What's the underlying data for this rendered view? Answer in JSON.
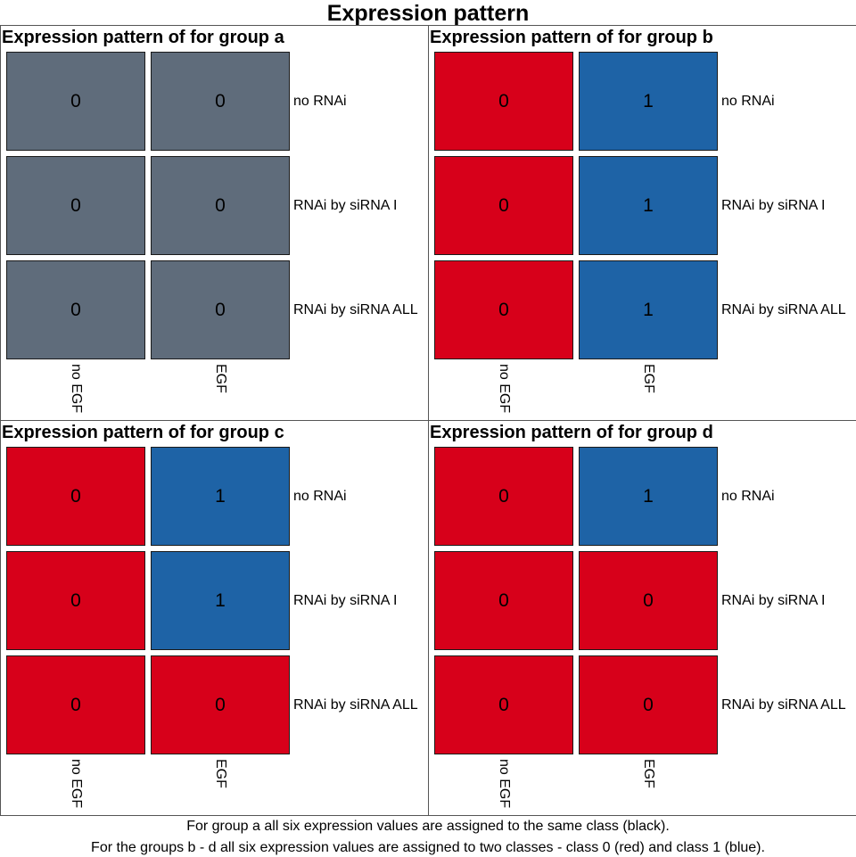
{
  "title": "Expression pattern",
  "chart_data": {
    "type": "heatmap",
    "title": "Expression pattern",
    "rows": [
      "no RNAi",
      "RNAi by siRNA I",
      "RNAi by siRNA ALL"
    ],
    "columns": [
      "no EGF",
      "EGF"
    ],
    "panels": [
      {
        "title": "Expression pattern of for group a",
        "values": [
          [
            0,
            0
          ],
          [
            0,
            0
          ],
          [
            0,
            0
          ]
        ],
        "class_colors": {
          "0": "#5f6c7b",
          "1": "#5f6c7b"
        }
      },
      {
        "title": "Expression pattern of for group b",
        "values": [
          [
            0,
            1
          ],
          [
            0,
            1
          ],
          [
            0,
            1
          ]
        ],
        "class_colors": {
          "0": "#d7001a",
          "1": "#1e63a6"
        }
      },
      {
        "title": "Expression pattern of for group c",
        "values": [
          [
            0,
            1
          ],
          [
            0,
            1
          ],
          [
            0,
            0
          ]
        ],
        "class_colors": {
          "0": "#d7001a",
          "1": "#1e63a6"
        }
      },
      {
        "title": "Expression pattern of for group d",
        "values": [
          [
            0,
            1
          ],
          [
            0,
            0
          ],
          [
            0,
            0
          ]
        ],
        "class_colors": {
          "0": "#d7001a",
          "1": "#1e63a6"
        }
      }
    ]
  },
  "caption": {
    "line1": "For group a all six expression values are assigned to the same class (black).",
    "line2": "For the groups b - d all six expression values are assigned to two classes - class 0 (red) and class 1 (blue)."
  }
}
